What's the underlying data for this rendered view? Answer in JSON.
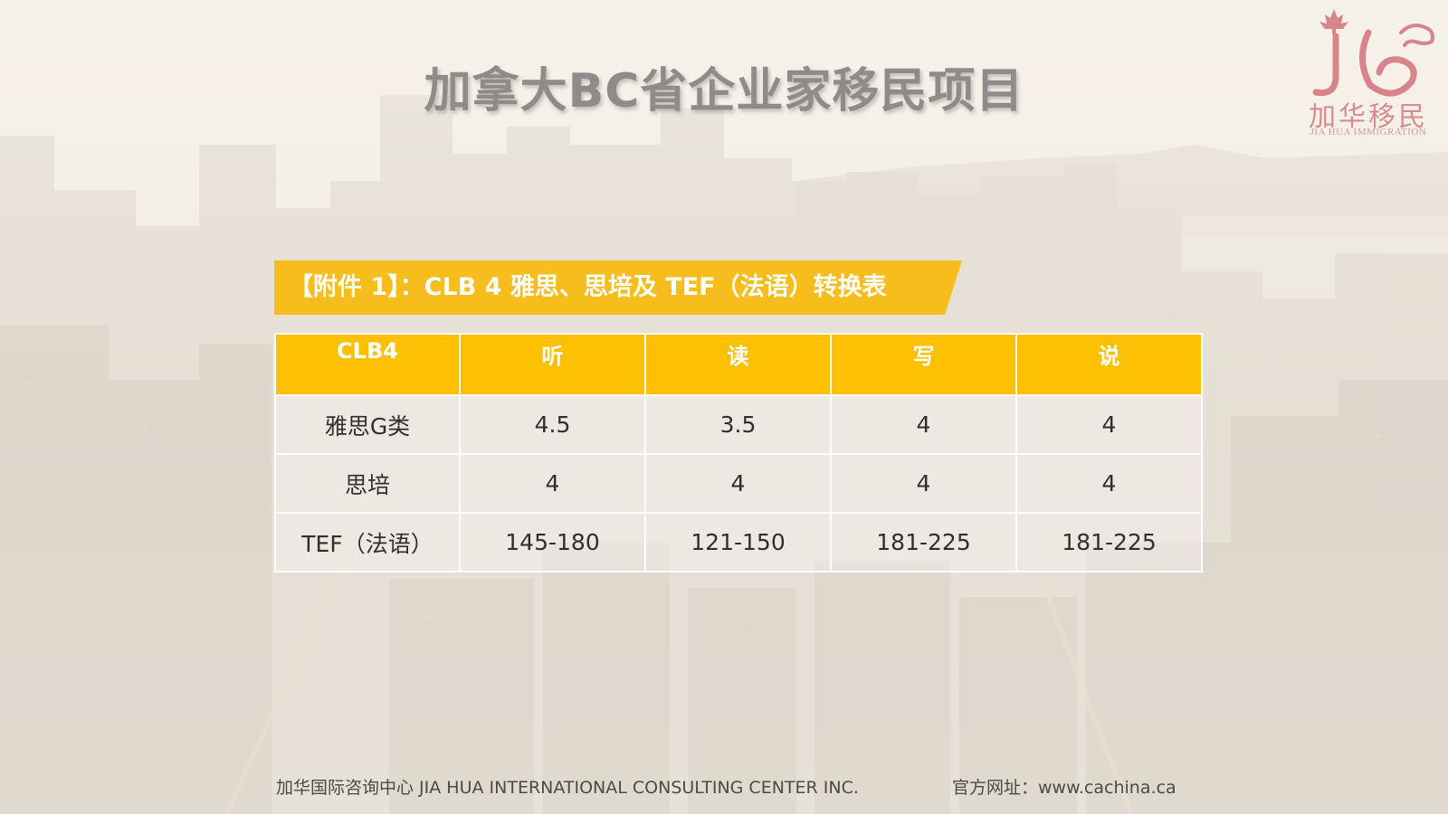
{
  "page": {
    "title": "加拿大BC省企业家移民项目"
  },
  "logo": {
    "name_cn": "加华移民",
    "name_en": "JIA HUA IMMIGRATION",
    "brand_color": "#d9838a"
  },
  "banner": {
    "text": "【附件 1】：CLB 4 雅思、思培及 TEF（法语）转换表",
    "color": "#f6bd1c"
  },
  "table": {
    "header_color": "#fdc003",
    "headers": [
      "CLB4",
      "听",
      "读",
      "写",
      "说"
    ],
    "rows": [
      [
        "雅思G类",
        "4.5",
        "3.5",
        "4",
        "4"
      ],
      [
        "思培",
        "4",
        "4",
        "4",
        "4"
      ],
      [
        "TEF（法语）",
        "145-180",
        "121-150",
        "181-225",
        "181-225"
      ]
    ]
  },
  "footer": {
    "company": "加华国际咨询中心 JIA HUA INTERNATIONAL CONSULTING CENTER INC.",
    "website": "官方网址：www.cachina.ca"
  }
}
